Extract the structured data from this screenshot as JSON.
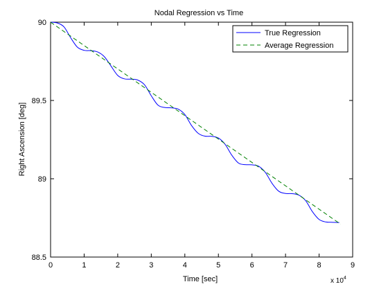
{
  "chart_data": {
    "type": "line",
    "title": "Nodal Regression vs Time",
    "xlabel": "Time [sec]",
    "ylabel": "Right Ascension [deg]",
    "x_scale_label": "x 10",
    "x_scale_exponent": "4",
    "x_scale_factor": 10000,
    "xlim": [
      0,
      9
    ],
    "ylim": [
      88.5,
      90
    ],
    "x_ticks": [
      0,
      1,
      2,
      3,
      4,
      5,
      6,
      7,
      8,
      9
    ],
    "x_tick_labels": [
      "0",
      "1",
      "2",
      "3",
      "4",
      "5",
      "6",
      "7",
      "8",
      "9"
    ],
    "y_ticks": [
      88.5,
      89,
      89.5,
      90
    ],
    "y_tick_labels": [
      "88.5",
      "89",
      "89.5",
      "90"
    ],
    "grid": false,
    "legend_position": "top-right",
    "series": [
      {
        "name": "True Regression",
        "color": "#0000ff",
        "style": "solid",
        "x": [
          0,
          0.2,
          0.4,
          0.6,
          0.8,
          1.0,
          1.2,
          1.4,
          1.6,
          1.8,
          2.0,
          2.2,
          2.4,
          2.6,
          2.8,
          3.0,
          3.2,
          3.4,
          3.6,
          3.8,
          4.0,
          4.2,
          4.4,
          4.6,
          4.8,
          5.0,
          5.2,
          5.4,
          5.6,
          5.8,
          6.0,
          6.2,
          6.4,
          6.6,
          6.8,
          7.0,
          7.2,
          7.4,
          7.6,
          7.8,
          8.0,
          8.2,
          8.4,
          8.6
        ],
        "y": [
          90.0,
          89.995,
          89.97,
          89.9,
          89.84,
          89.82,
          89.818,
          89.81,
          89.78,
          89.72,
          89.66,
          89.638,
          89.636,
          89.63,
          89.6,
          89.53,
          89.47,
          89.455,
          89.453,
          89.445,
          89.41,
          89.34,
          89.29,
          89.272,
          89.271,
          89.26,
          89.22,
          89.15,
          89.1,
          89.09,
          89.089,
          89.08,
          89.04,
          88.97,
          88.92,
          88.906,
          88.905,
          88.895,
          88.86,
          88.79,
          88.74,
          88.724,
          88.722,
          88.72
        ]
      },
      {
        "name": "Average Regression",
        "color": "#008000",
        "style": "dashed",
        "x": [
          0,
          8.64
        ],
        "y": [
          90.0,
          88.71
        ]
      }
    ]
  }
}
